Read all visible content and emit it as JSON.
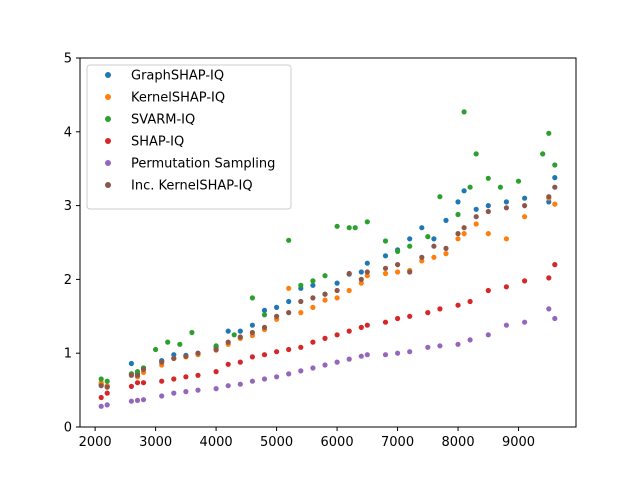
{
  "chart_data": {
    "type": "scatter",
    "title": "",
    "xlabel": "",
    "ylabel": "",
    "xlim": [
      1750,
      9950
    ],
    "ylim": [
      0,
      5
    ],
    "xticks": [
      2000,
      3000,
      4000,
      5000,
      6000,
      7000,
      8000,
      9000
    ],
    "yticks": [
      0,
      1,
      2,
      3,
      4,
      5
    ],
    "legend_position": "upper-left",
    "grid": false,
    "series": [
      {
        "name": "GraphSHAP-IQ",
        "color": "#1f77b4",
        "points": [
          [
            2100,
            0.58
          ],
          [
            2200,
            0.55
          ],
          [
            2600,
            0.86
          ],
          [
            2700,
            0.72
          ],
          [
            2800,
            0.8
          ],
          [
            3100,
            0.9
          ],
          [
            3300,
            0.98
          ],
          [
            3500,
            0.97
          ],
          [
            3700,
            1.0
          ],
          [
            4000,
            1.08
          ],
          [
            4200,
            1.3
          ],
          [
            4400,
            1.3
          ],
          [
            4600,
            1.38
          ],
          [
            4800,
            1.58
          ],
          [
            5000,
            1.62
          ],
          [
            5200,
            1.7
          ],
          [
            5400,
            1.88
          ],
          [
            5600,
            1.92
          ],
          [
            5800,
            1.8
          ],
          [
            6000,
            1.95
          ],
          [
            6200,
            2.07
          ],
          [
            6400,
            2.1
          ],
          [
            6500,
            2.22
          ],
          [
            6800,
            2.32
          ],
          [
            7000,
            2.4
          ],
          [
            7200,
            2.55
          ],
          [
            7400,
            2.7
          ],
          [
            7600,
            2.55
          ],
          [
            7800,
            2.8
          ],
          [
            8000,
            3.05
          ],
          [
            8100,
            3.2
          ],
          [
            8300,
            2.95
          ],
          [
            8500,
            3.0
          ],
          [
            8800,
            3.05
          ],
          [
            9100,
            3.1
          ],
          [
            9500,
            3.05
          ],
          [
            9600,
            3.38
          ]
        ]
      },
      {
        "name": "KernelSHAP-IQ",
        "color": "#ff7f0e",
        "points": [
          [
            2100,
            0.6
          ],
          [
            2200,
            0.56
          ],
          [
            2600,
            0.72
          ],
          [
            2700,
            0.68
          ],
          [
            2800,
            0.74
          ],
          [
            3100,
            0.84
          ],
          [
            3300,
            0.93
          ],
          [
            3500,
            0.95
          ],
          [
            3700,
            0.98
          ],
          [
            4000,
            1.04
          ],
          [
            4200,
            1.12
          ],
          [
            4400,
            1.2
          ],
          [
            4600,
            1.24
          ],
          [
            4800,
            1.32
          ],
          [
            5000,
            1.46
          ],
          [
            5200,
            1.88
          ],
          [
            5400,
            1.55
          ],
          [
            5600,
            1.62
          ],
          [
            5800,
            1.72
          ],
          [
            6000,
            1.75
          ],
          [
            6200,
            1.85
          ],
          [
            6400,
            1.95
          ],
          [
            6500,
            2.05
          ],
          [
            6800,
            2.08
          ],
          [
            7000,
            2.1
          ],
          [
            7200,
            2.12
          ],
          [
            7400,
            2.25
          ],
          [
            7600,
            2.3
          ],
          [
            7800,
            2.35
          ],
          [
            8000,
            2.55
          ],
          [
            8100,
            2.62
          ],
          [
            8300,
            2.75
          ],
          [
            8500,
            2.62
          ],
          [
            8800,
            2.55
          ],
          [
            9100,
            2.85
          ],
          [
            9500,
            3.1
          ],
          [
            9600,
            3.02
          ]
        ]
      },
      {
        "name": "SVARM-IQ",
        "color": "#2ca02c",
        "points": [
          [
            2100,
            0.65
          ],
          [
            2200,
            0.62
          ],
          [
            2600,
            0.72
          ],
          [
            2700,
            0.75
          ],
          [
            2800,
            0.8
          ],
          [
            3000,
            1.05
          ],
          [
            3200,
            1.15
          ],
          [
            3400,
            1.12
          ],
          [
            3600,
            1.28
          ],
          [
            4000,
            1.1
          ],
          [
            4300,
            1.25
          ],
          [
            4600,
            1.75
          ],
          [
            4800,
            1.52
          ],
          [
            5200,
            2.53
          ],
          [
            5400,
            1.92
          ],
          [
            5600,
            1.98
          ],
          [
            5800,
            2.05
          ],
          [
            6000,
            2.72
          ],
          [
            6200,
            2.7
          ],
          [
            6300,
            2.7
          ],
          [
            6500,
            2.78
          ],
          [
            6800,
            2.52
          ],
          [
            7000,
            2.38
          ],
          [
            7200,
            2.45
          ],
          [
            7500,
            2.58
          ],
          [
            7700,
            3.12
          ],
          [
            8000,
            2.88
          ],
          [
            8100,
            4.27
          ],
          [
            8200,
            3.25
          ],
          [
            8300,
            3.7
          ],
          [
            8500,
            3.37
          ],
          [
            8700,
            3.25
          ],
          [
            9000,
            3.33
          ],
          [
            9400,
            3.7
          ],
          [
            9500,
            3.98
          ],
          [
            9600,
            3.55
          ]
        ]
      },
      {
        "name": "SHAP-IQ",
        "color": "#d62728",
        "points": [
          [
            2100,
            0.4
          ],
          [
            2200,
            0.46
          ],
          [
            2600,
            0.55
          ],
          [
            2700,
            0.6
          ],
          [
            2800,
            0.6
          ],
          [
            3100,
            0.62
          ],
          [
            3300,
            0.65
          ],
          [
            3500,
            0.68
          ],
          [
            3700,
            0.7
          ],
          [
            4000,
            0.75
          ],
          [
            4200,
            0.85
          ],
          [
            4400,
            0.88
          ],
          [
            4600,
            0.95
          ],
          [
            4800,
            0.98
          ],
          [
            5000,
            1.02
          ],
          [
            5200,
            1.05
          ],
          [
            5400,
            1.08
          ],
          [
            5600,
            1.15
          ],
          [
            5800,
            1.2
          ],
          [
            6000,
            1.25
          ],
          [
            6200,
            1.3
          ],
          [
            6400,
            1.35
          ],
          [
            6500,
            1.38
          ],
          [
            6800,
            1.42
          ],
          [
            7000,
            1.47
          ],
          [
            7200,
            1.5
          ],
          [
            7500,
            1.55
          ],
          [
            7700,
            1.6
          ],
          [
            8000,
            1.65
          ],
          [
            8200,
            1.7
          ],
          [
            8500,
            1.85
          ],
          [
            8800,
            1.9
          ],
          [
            9100,
            1.98
          ],
          [
            9500,
            2.02
          ],
          [
            9600,
            2.2
          ]
        ]
      },
      {
        "name": "Permutation Sampling",
        "color": "#9467bd",
        "points": [
          [
            2100,
            0.28
          ],
          [
            2200,
            0.3
          ],
          [
            2600,
            0.35
          ],
          [
            2700,
            0.36
          ],
          [
            2800,
            0.37
          ],
          [
            3100,
            0.42
          ],
          [
            3300,
            0.46
          ],
          [
            3500,
            0.48
          ],
          [
            3700,
            0.5
          ],
          [
            4000,
            0.52
          ],
          [
            4200,
            0.56
          ],
          [
            4400,
            0.58
          ],
          [
            4600,
            0.62
          ],
          [
            4800,
            0.65
          ],
          [
            5000,
            0.68
          ],
          [
            5200,
            0.72
          ],
          [
            5400,
            0.76
          ],
          [
            5600,
            0.8
          ],
          [
            5800,
            0.84
          ],
          [
            6000,
            0.88
          ],
          [
            6200,
            0.92
          ],
          [
            6400,
            0.96
          ],
          [
            6500,
            0.98
          ],
          [
            6800,
            0.98
          ],
          [
            7000,
            1.0
          ],
          [
            7200,
            1.02
          ],
          [
            7500,
            1.08
          ],
          [
            7700,
            1.1
          ],
          [
            8000,
            1.12
          ],
          [
            8200,
            1.18
          ],
          [
            8500,
            1.25
          ],
          [
            8800,
            1.38
          ],
          [
            9100,
            1.42
          ],
          [
            9500,
            1.6
          ],
          [
            9600,
            1.47
          ]
        ]
      },
      {
        "name": "Inc. KernelSHAP-IQ",
        "color": "#8c564b",
        "points": [
          [
            2100,
            0.56
          ],
          [
            2200,
            0.54
          ],
          [
            2600,
            0.7
          ],
          [
            2700,
            0.7
          ],
          [
            2800,
            0.78
          ],
          [
            3100,
            0.88
          ],
          [
            3300,
            0.93
          ],
          [
            3500,
            0.96
          ],
          [
            3700,
            1.0
          ],
          [
            4000,
            1.05
          ],
          [
            4200,
            1.15
          ],
          [
            4400,
            1.22
          ],
          [
            4600,
            1.28
          ],
          [
            4800,
            1.35
          ],
          [
            5000,
            1.5
          ],
          [
            5200,
            1.55
          ],
          [
            5400,
            1.7
          ],
          [
            5600,
            1.75
          ],
          [
            5800,
            1.8
          ],
          [
            6000,
            1.85
          ],
          [
            6200,
            2.08
          ],
          [
            6400,
            2.0
          ],
          [
            6500,
            2.1
          ],
          [
            6800,
            2.15
          ],
          [
            7000,
            2.2
          ],
          [
            7200,
            2.1
          ],
          [
            7400,
            2.3
          ],
          [
            7600,
            2.45
          ],
          [
            7800,
            2.42
          ],
          [
            8000,
            2.62
          ],
          [
            8100,
            2.7
          ],
          [
            8300,
            2.85
          ],
          [
            8500,
            2.92
          ],
          [
            8800,
            2.97
          ],
          [
            9100,
            3.0
          ],
          [
            9500,
            3.12
          ],
          [
            9600,
            3.25
          ]
        ]
      }
    ]
  }
}
